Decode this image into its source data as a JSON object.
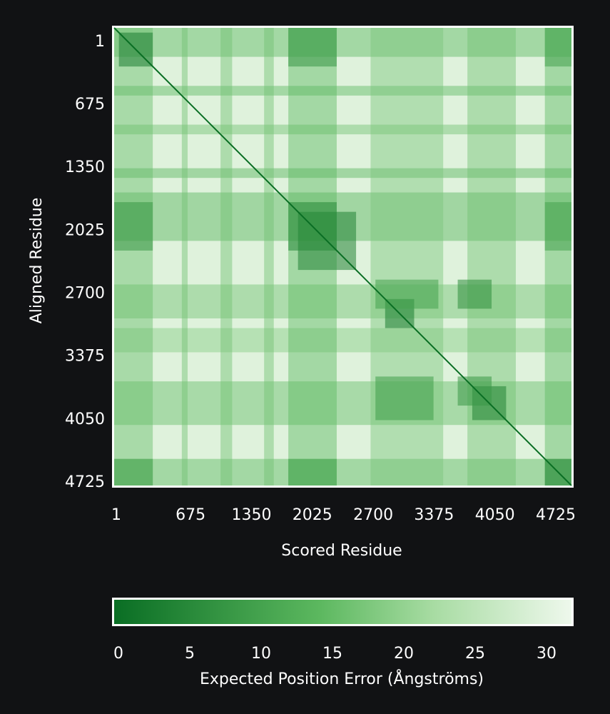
{
  "chart_data": {
    "type": "heatmap",
    "title": "",
    "xlabel": "Scored Residue",
    "ylabel": "Aligned Residue",
    "residue_range": [
      1,
      4725
    ],
    "x_ticks": [
      "1",
      "675",
      "1350",
      "2025",
      "2700",
      "3375",
      "4050",
      "4725"
    ],
    "y_ticks": [
      "1",
      "675",
      "1350",
      "2025",
      "2700",
      "3375",
      "4050",
      "4725"
    ],
    "tick_values": [
      1,
      675,
      1350,
      2025,
      2700,
      3375,
      4050,
      4725
    ],
    "colorbar": {
      "label": "Expected Position Error (Ångströms)",
      "ticks": [
        "0",
        "5",
        "10",
        "15",
        "20",
        "25",
        "30"
      ],
      "tick_values": [
        0,
        5,
        10,
        15,
        20,
        25,
        30
      ],
      "range": [
        0,
        31
      ],
      "color_low": "#0a6e24",
      "color_mid": "#8fd18a",
      "color_high": "#eef8ec"
    },
    "background_error": 29,
    "diagonal_error": 0,
    "blocks": [
      {
        "x": [
          50,
          400
        ],
        "y": [
          50,
          400
        ],
        "error": 3
      },
      {
        "x": [
          1900,
          2500
        ],
        "y": [
          1900,
          2500
        ],
        "error": 4
      },
      {
        "x": [
          2800,
          3100
        ],
        "y": [
          2800,
          3100
        ],
        "error": 3
      },
      {
        "x": [
          3700,
          4050
        ],
        "y": [
          3700,
          4050
        ],
        "error": 4
      },
      {
        "x": [
          4450,
          4725
        ],
        "y": [
          4450,
          4725
        ],
        "error": 4
      },
      {
        "x": [
          1,
          400
        ],
        "y": [
          1800,
          2300
        ],
        "error": 8
      },
      {
        "x": [
          1800,
          2300
        ],
        "y": [
          1,
          400
        ],
        "error": 8
      },
      {
        "x": [
          1800,
          2300
        ],
        "y": [
          1800,
          2300
        ],
        "error": 5
      },
      {
        "x": [
          2700,
          3350
        ],
        "y": [
          2600,
          2900
        ],
        "error": 10
      },
      {
        "x": [
          3550,
          3900
        ],
        "y": [
          2600,
          2900
        ],
        "error": 6
      },
      {
        "x": [
          2700,
          3300
        ],
        "y": [
          3600,
          4050
        ],
        "error": 9
      },
      {
        "x": [
          3550,
          3900
        ],
        "y": [
          3600,
          3900
        ],
        "error": 8
      },
      {
        "x": [
          4450,
          4725
        ],
        "y": [
          1,
          400
        ],
        "error": 10
      },
      {
        "x": [
          4450,
          4725
        ],
        "y": [
          1800,
          2300
        ],
        "error": 10
      },
      {
        "x": [
          1,
          400
        ],
        "y": [
          4450,
          4725
        ],
        "error": 10
      },
      {
        "x": [
          1800,
          2300
        ],
        "y": [
          4450,
          4725
        ],
        "error": 10
      }
    ],
    "row_bands": [
      {
        "range": [
          1,
          300
        ],
        "error": 14
      },
      {
        "range": [
          600,
          700
        ],
        "error": 14
      },
      {
        "range": [
          1000,
          1100
        ],
        "error": 16
      },
      {
        "range": [
          1450,
          1550
        ],
        "error": 13
      },
      {
        "range": [
          1700,
          2200
        ],
        "error": 13
      },
      {
        "range": [
          2650,
          3000
        ],
        "error": 16
      },
      {
        "range": [
          3100,
          3350
        ],
        "error": 18
      },
      {
        "range": [
          3650,
          4100
        ],
        "error": 15
      },
      {
        "range": [
          4450,
          4725
        ],
        "error": 14
      }
    ],
    "col_bands": [
      {
        "range": [
          1,
          400
        ],
        "error": 15
      },
      {
        "range": [
          700,
          760
        ],
        "error": 16
      },
      {
        "range": [
          1100,
          1220
        ],
        "error": 16
      },
      {
        "range": [
          1550,
          1650
        ],
        "error": 16
      },
      {
        "range": [
          1800,
          2300
        ],
        "error": 14
      },
      {
        "range": [
          2650,
          3400
        ],
        "error": 17
      },
      {
        "range": [
          3650,
          4150
        ],
        "error": 16
      },
      {
        "range": [
          4450,
          4725
        ],
        "error": 14
      }
    ]
  }
}
